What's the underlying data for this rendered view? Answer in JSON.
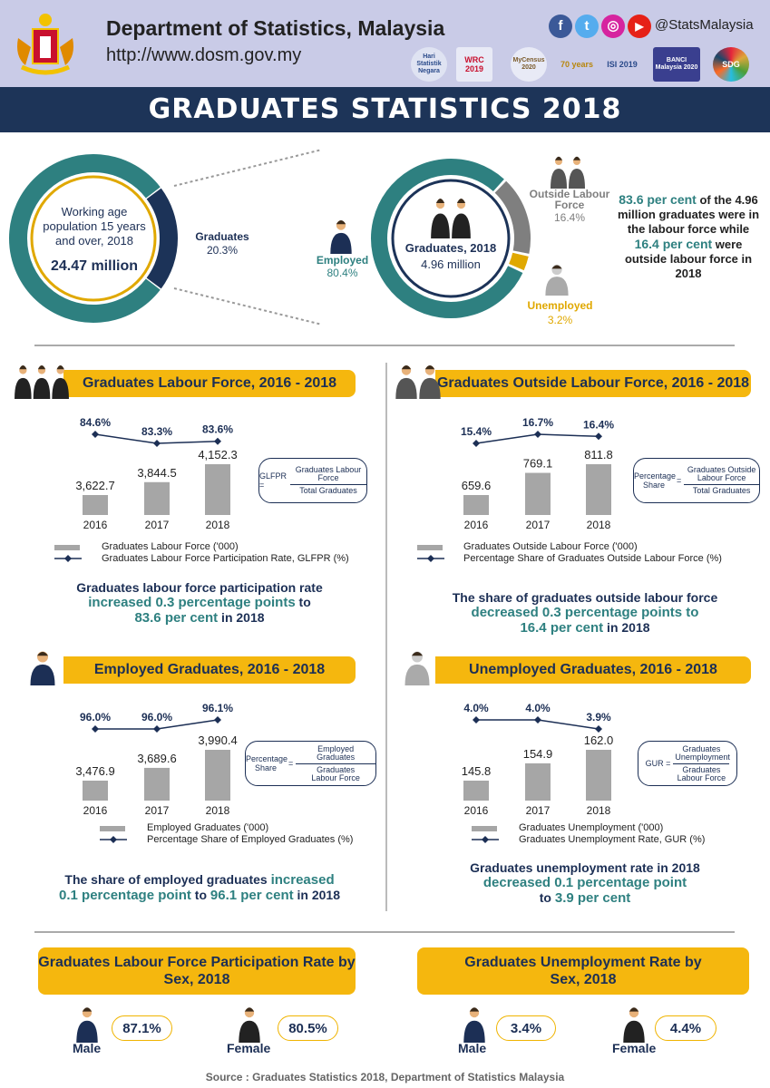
{
  "header": {
    "title": "Department of Statistics, Malaysia",
    "url": "http://www.dosm.gov.my",
    "social_handle": "@StatsMalaysia",
    "social_icons": [
      "facebook-icon",
      "twitter-icon",
      "instagram-icon",
      "youtube-icon"
    ],
    "partner_logos": [
      "Hari Statistik Negara",
      "WRC 2019",
      "MyCensus 2020",
      "70 years",
      "ISI 2019",
      "BANCI Malaysia 2020",
      "SDG"
    ]
  },
  "banner": {
    "title": "GRADUATES STATISTICS 2018"
  },
  "overview": {
    "working_age": {
      "label": "Working age population 15 years and over, 2018",
      "value": "24.47 million"
    },
    "graduates_share": {
      "label": "Graduates",
      "value": "20.3%"
    },
    "graduates_2018": {
      "label": "Graduates, 2018",
      "value": "4.96 million"
    },
    "employed": {
      "label": "Employed",
      "value": "80.4%"
    },
    "outside": {
      "label": "Outside Labour Force",
      "value": "16.4%"
    },
    "unemployed": {
      "label": "Unemployed",
      "value": "3.2%"
    },
    "summary": [
      "83.6 per cent",
      " of the 4.96 million graduates were in the labour force while ",
      "16.4 per cent",
      " were outside labour force in 2018"
    ],
    "colors": {
      "teal": "#2e8080",
      "navy": "#1c3358",
      "gray": "#7f7f7f",
      "yellow": "#e0a800"
    }
  },
  "panels": [
    {
      "title": "Graduates Labour Force, 2016 - 2018",
      "formula": {
        "lhs": "GLFPR =",
        "numerator": "Graduates Labour Force",
        "denominator": "Total Graduates"
      },
      "legend": {
        "bar": "Graduates Labour Force ('000)",
        "line": "Graduates Labour Force Participation Rate, GLFPR (%)"
      },
      "summary": [
        "Graduates labour force participation rate",
        "increased 0.3 percentage points",
        " to",
        "83.6 per cent",
        " in 2018"
      ]
    },
    {
      "title": "Graduates Outside Labour Force, 2016 - 2018",
      "formula": {
        "lhs": "Percentage Share",
        "numerator": "Graduates Outside Labour Force",
        "denominator": "Total Graduates"
      },
      "legend": {
        "bar": "Graduates Outside Labour Force ('000)",
        "line": "Percentage Share of Graduates Outside Labour Force (%)"
      },
      "summary": [
        "The share of graduates outside labour force",
        "decreased 0.3 percentage points to",
        "16.4 per cent",
        " in 2018"
      ]
    },
    {
      "title": "Employed Graduates, 2016 - 2018",
      "formula": {
        "lhs": "Percentage Share",
        "numerator": "Employed Graduates",
        "denominator": "Graduates Labour Force"
      },
      "legend": {
        "bar": "Employed Graduates ('000)",
        "line": "Percentage Share of Employed Graduates (%)"
      },
      "summary": [
        "The share of employed graduates ",
        "increased",
        "0.1 percentage point",
        " to ",
        "96.1 per cent",
        " in 2018"
      ]
    },
    {
      "title": "Unemployed Graduates, 2016 - 2018",
      "formula": {
        "lhs": "GUR =",
        "numerator": "Graduates Unemployment",
        "denominator": "Graduates Labour Force"
      },
      "legend": {
        "bar": "Graduates Unemployment ('000)",
        "line": "Graduates Unemployment Rate, GUR (%)"
      },
      "summary": [
        "Graduates unemployment rate in 2018",
        "decreased 0.1 percentage point",
        "to ",
        "3.9 per cent"
      ]
    }
  ],
  "chart_data": [
    {
      "type": "bar",
      "categories": [
        "2016",
        "2017",
        "2018"
      ],
      "values": [
        3622.7,
        3844.5,
        4152.3
      ],
      "value_labels": [
        "3,622.7",
        "3,844.5",
        "4,152.3"
      ],
      "line": {
        "values": [
          84.6,
          83.3,
          83.6
        ],
        "labels": [
          "84.6%",
          "83.3%",
          "83.6%"
        ]
      }
    },
    {
      "type": "bar",
      "categories": [
        "2016",
        "2017",
        "2018"
      ],
      "values": [
        659.6,
        769.1,
        811.8
      ],
      "value_labels": [
        "659.6",
        "769.1",
        "811.8"
      ],
      "line": {
        "values": [
          15.4,
          16.7,
          16.4
        ],
        "labels": [
          "15.4%",
          "16.7%",
          "16.4%"
        ]
      }
    },
    {
      "type": "bar",
      "categories": [
        "2016",
        "2017",
        "2018"
      ],
      "values": [
        3476.9,
        3689.6,
        3990.4
      ],
      "value_labels": [
        "3,476.9",
        "3,689.6",
        "3,990.4"
      ],
      "line": {
        "values": [
          96.0,
          96.0,
          96.1
        ],
        "labels": [
          "96.0%",
          "96.0%",
          "96.1%"
        ]
      }
    },
    {
      "type": "bar",
      "categories": [
        "2016",
        "2017",
        "2018"
      ],
      "values": [
        145.8,
        154.9,
        162.0
      ],
      "value_labels": [
        "145.8",
        "154.9",
        "162.0"
      ],
      "line": {
        "values": [
          4.0,
          4.0,
          3.9
        ],
        "labels": [
          "4.0%",
          "4.0%",
          "3.9%"
        ]
      }
    },
    {
      "type": "pie",
      "categories": [
        "Graduates",
        "Other"
      ],
      "values": [
        20.3,
        79.7
      ]
    },
    {
      "type": "pie",
      "categories": [
        "Employed",
        "Outside Labour Force",
        "Unemployed"
      ],
      "values": [
        80.4,
        16.4,
        3.2
      ]
    }
  ],
  "by_sex": {
    "lfpr": {
      "title": "Graduates Labour Force Participation Rate by Sex, 2018",
      "male_label": "Male",
      "male": "87.1%",
      "female_label": "Female",
      "female": "80.5%"
    },
    "ur": {
      "title": "Graduates Unemployment Rate by Sex, 2018",
      "male_label": "Male",
      "male": "3.4%",
      "female_label": "Female",
      "female": "4.4%"
    }
  },
  "source": "Source : Graduates Statistics 2018, Department of Statistics Malaysia"
}
